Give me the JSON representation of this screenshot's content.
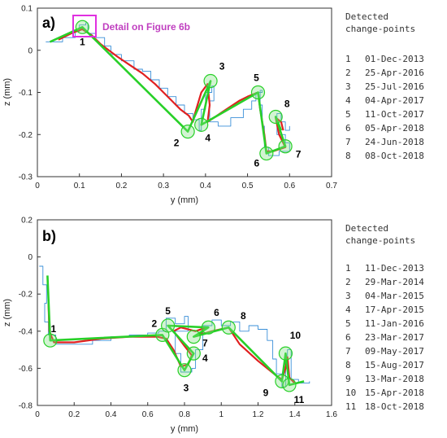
{
  "colors": {
    "raw": "#3a8fd8",
    "filtered": "#e02020",
    "segments": "#28d028",
    "circle": "#7ee07e",
    "highlight": "#e030e0"
  },
  "chart_data": [
    {
      "type": "line",
      "panel_label": "a)",
      "xlabel": "y (mm)",
      "ylabel": "z (mm)",
      "xlim": [
        0,
        0.7
      ],
      "ylim": [
        -0.3,
        0.1
      ],
      "xticks": [
        "0",
        "0.1",
        "0.2",
        "0.3",
        "0.4",
        "0.5",
        "0.6",
        "0.7"
      ],
      "yticks": [
        "0.1",
        "0",
        "-0.1",
        "-0.2",
        "-0.3"
      ],
      "annotation": "Detail on Figure 6b",
      "grid": false,
      "legend_title": [
        "Detected",
        "change-points"
      ],
      "change_points": [
        {
          "label": "1",
          "date": "01-Dec-2013",
          "y": 0.107,
          "z": 0.055
        },
        {
          "label": "2",
          "date": "25-Apr-2016",
          "y": 0.358,
          "z": -0.193
        },
        {
          "label": "3",
          "date": "25-Jul-2016",
          "y": 0.412,
          "z": -0.073
        },
        {
          "label": "4",
          "date": "04-Apr-2017",
          "y": 0.39,
          "z": -0.177
        },
        {
          "label": "5",
          "date": "11-Oct-2017",
          "y": 0.525,
          "z": -0.1
        },
        {
          "label": "6",
          "date": "05-Apr-2018",
          "y": 0.545,
          "z": -0.245
        },
        {
          "label": "7",
          "date": "24-Jun-2018",
          "y": 0.59,
          "z": -0.228
        },
        {
          "label": "8",
          "date": "08-Oct-2018",
          "y": 0.567,
          "z": -0.158
        }
      ],
      "series": [
        {
          "role": "segments",
          "points": [
            [
              0.03,
              0.02
            ],
            [
              0.107,
              0.055
            ],
            [
              0.358,
              -0.193
            ],
            [
              0.412,
              -0.073
            ],
            [
              0.39,
              -0.177
            ],
            [
              0.525,
              -0.1
            ],
            [
              0.545,
              -0.245
            ],
            [
              0.59,
              -0.228
            ],
            [
              0.567,
              -0.158
            ],
            [
              0.58,
              -0.19
            ]
          ]
        },
        {
          "role": "filtered",
          "points": [
            [
              0.05,
              0.025
            ],
            [
              0.08,
              0.04
            ],
            [
              0.107,
              0.05
            ],
            [
              0.13,
              0.035
            ],
            [
              0.15,
              0.015
            ],
            [
              0.17,
              0.0
            ],
            [
              0.19,
              -0.015
            ],
            [
              0.22,
              -0.035
            ],
            [
              0.25,
              -0.055
            ],
            [
              0.28,
              -0.08
            ],
            [
              0.3,
              -0.1
            ],
            [
              0.32,
              -0.12
            ],
            [
              0.34,
              -0.14
            ],
            [
              0.36,
              -0.155
            ],
            [
              0.37,
              -0.17
            ],
            [
              0.375,
              -0.15
            ],
            [
              0.39,
              -0.1
            ],
            [
              0.405,
              -0.08
            ],
            [
              0.41,
              -0.13
            ],
            [
              0.405,
              -0.17
            ],
            [
              0.42,
              -0.16
            ],
            [
              0.45,
              -0.14
            ],
            [
              0.48,
              -0.12
            ],
            [
              0.5,
              -0.11
            ],
            [
              0.525,
              -0.1
            ],
            [
              0.53,
              -0.14
            ],
            [
              0.54,
              -0.2
            ],
            [
              0.545,
              -0.24
            ],
            [
              0.56,
              -0.24
            ],
            [
              0.59,
              -0.23
            ],
            [
              0.575,
              -0.2
            ],
            [
              0.567,
              -0.16
            ],
            [
              0.58,
              -0.17
            ],
            [
              0.585,
              -0.19
            ]
          ]
        },
        {
          "role": "raw",
          "points": [
            [
              0.02,
              0.02
            ],
            [
              0.06,
              0.03
            ],
            [
              0.09,
              0.045
            ],
            [
              0.1,
              0.06
            ],
            [
              0.115,
              0.065
            ],
            [
              0.12,
              0.04
            ],
            [
              0.14,
              0.03
            ],
            [
              0.16,
              0.01
            ],
            [
              0.175,
              -0.01
            ],
            [
              0.2,
              -0.025
            ],
            [
              0.23,
              -0.045
            ],
            [
              0.25,
              -0.05
            ],
            [
              0.27,
              -0.07
            ],
            [
              0.29,
              -0.09
            ],
            [
              0.31,
              -0.11
            ],
            [
              0.33,
              -0.13
            ],
            [
              0.35,
              -0.15
            ],
            [
              0.37,
              -0.165
            ],
            [
              0.385,
              -0.19
            ],
            [
              0.39,
              -0.14
            ],
            [
              0.4,
              -0.1
            ],
            [
              0.415,
              -0.085
            ],
            [
              0.42,
              -0.12
            ],
            [
              0.41,
              -0.17
            ],
            [
              0.43,
              -0.18
            ],
            [
              0.46,
              -0.16
            ],
            [
              0.49,
              -0.14
            ],
            [
              0.51,
              -0.12
            ],
            [
              0.52,
              -0.1
            ],
            [
              0.535,
              -0.095
            ],
            [
              0.53,
              -0.13
            ],
            [
              0.535,
              -0.18
            ],
            [
              0.54,
              -0.23
            ],
            [
              0.55,
              -0.25
            ],
            [
              0.575,
              -0.24
            ],
            [
              0.6,
              -0.22
            ],
            [
              0.59,
              -0.2
            ],
            [
              0.57,
              -0.15
            ],
            [
              0.58,
              -0.17
            ],
            [
              0.59,
              -0.19
            ],
            [
              0.6,
              -0.18
            ]
          ]
        }
      ]
    },
    {
      "type": "line",
      "panel_label": "b)",
      "xlabel": "y (mm)",
      "ylabel": "z (mm)",
      "xlim": [
        0,
        1.6
      ],
      "ylim": [
        -0.8,
        0.2
      ],
      "xticks": [
        "0",
        "0.2",
        "0.4",
        "0.6",
        "0.8",
        "1",
        "1.2",
        "1.4",
        "1.6"
      ],
      "yticks": [
        "0.2",
        "0",
        "-0.2",
        "-0.4",
        "-0.6",
        "-0.8"
      ],
      "grid": false,
      "legend_title": [
        "Detected",
        "change-points"
      ],
      "change_points": [
        {
          "label": "1",
          "date": "11-Dec-2013",
          "y": 0.07,
          "z": -0.45
        },
        {
          "label": "2",
          "date": "29-Mar-2014",
          "y": 0.68,
          "z": -0.42
        },
        {
          "label": "3",
          "date": "04-Mar-2015",
          "y": 0.8,
          "z": -0.61
        },
        {
          "label": "4",
          "date": "17-Apr-2015",
          "y": 0.85,
          "z": -0.52
        },
        {
          "label": "5",
          "date": "11-Jan-2016",
          "y": 0.71,
          "z": -0.37
        },
        {
          "label": "6",
          "date": "23-Mar-2017",
          "y": 0.93,
          "z": -0.38
        },
        {
          "label": "7",
          "date": "09-May-2017",
          "y": 0.85,
          "z": -0.43
        },
        {
          "label": "8",
          "date": "15-Aug-2017",
          "y": 1.04,
          "z": -0.38
        },
        {
          "label": "9",
          "date": "13-Mar-2018",
          "y": 1.33,
          "z": -0.67
        },
        {
          "label": "10",
          "date": "15-Apr-2018",
          "y": 1.35,
          "z": -0.52
        },
        {
          "label": "11",
          "date": "18-Oct-2018",
          "y": 1.37,
          "z": -0.69
        }
      ],
      "series": [
        {
          "role": "segments",
          "points": [
            [
              0.055,
              -0.1
            ],
            [
              0.07,
              -0.45
            ],
            [
              0.68,
              -0.42
            ],
            [
              0.8,
              -0.61
            ],
            [
              0.85,
              -0.52
            ],
            [
              0.71,
              -0.37
            ],
            [
              0.93,
              -0.38
            ],
            [
              0.85,
              -0.43
            ],
            [
              1.04,
              -0.38
            ],
            [
              1.33,
              -0.67
            ],
            [
              1.35,
              -0.52
            ],
            [
              1.37,
              -0.69
            ],
            [
              1.45,
              -0.67
            ]
          ]
        },
        {
          "role": "filtered",
          "points": [
            [
              0.06,
              -0.25
            ],
            [
              0.065,
              -0.4
            ],
            [
              0.09,
              -0.46
            ],
            [
              0.2,
              -0.46
            ],
            [
              0.35,
              -0.44
            ],
            [
              0.5,
              -0.43
            ],
            [
              0.65,
              -0.43
            ],
            [
              0.7,
              -0.44
            ],
            [
              0.74,
              -0.5
            ],
            [
              0.78,
              -0.59
            ],
            [
              0.82,
              -0.58
            ],
            [
              0.84,
              -0.53
            ],
            [
              0.8,
              -0.48
            ],
            [
              0.74,
              -0.4
            ],
            [
              0.78,
              -0.38
            ],
            [
              0.86,
              -0.4
            ],
            [
              0.92,
              -0.38
            ],
            [
              0.88,
              -0.42
            ],
            [
              0.95,
              -0.4
            ],
            [
              1.04,
              -0.38
            ],
            [
              1.1,
              -0.47
            ],
            [
              1.2,
              -0.56
            ],
            [
              1.3,
              -0.64
            ],
            [
              1.33,
              -0.66
            ],
            [
              1.35,
              -0.6
            ],
            [
              1.36,
              -0.54
            ],
            [
              1.37,
              -0.65
            ],
            [
              1.4,
              -0.68
            ]
          ]
        },
        {
          "role": "raw",
          "points": [
            [
              0.01,
              -0.05
            ],
            [
              0.03,
              -0.15
            ],
            [
              0.05,
              -0.25
            ],
            [
              0.04,
              -0.35
            ],
            [
              0.06,
              -0.42
            ],
            [
              0.1,
              -0.47
            ],
            [
              0.2,
              -0.47
            ],
            [
              0.3,
              -0.45
            ],
            [
              0.4,
              -0.43
            ],
            [
              0.5,
              -0.42
            ],
            [
              0.6,
              -0.41
            ],
            [
              0.66,
              -0.4
            ],
            [
              0.7,
              -0.33
            ],
            [
              0.75,
              -0.36
            ],
            [
              0.8,
              -0.32
            ],
            [
              0.82,
              -0.4
            ],
            [
              0.75,
              -0.52
            ],
            [
              0.78,
              -0.62
            ],
            [
              0.84,
              -0.6
            ],
            [
              0.86,
              -0.5
            ],
            [
              0.9,
              -0.37
            ],
            [
              0.95,
              -0.34
            ],
            [
              1.0,
              -0.37
            ],
            [
              1.05,
              -0.35
            ],
            [
              1.1,
              -0.4
            ],
            [
              1.15,
              -0.37
            ],
            [
              1.2,
              -0.39
            ],
            [
              1.25,
              -0.45
            ],
            [
              1.28,
              -0.55
            ],
            [
              1.3,
              -0.63
            ],
            [
              1.33,
              -0.7
            ],
            [
              1.35,
              -0.55
            ],
            [
              1.36,
              -0.5
            ],
            [
              1.38,
              -0.66
            ],
            [
              1.42,
              -0.68
            ],
            [
              1.48,
              -0.67
            ]
          ]
        }
      ]
    }
  ]
}
